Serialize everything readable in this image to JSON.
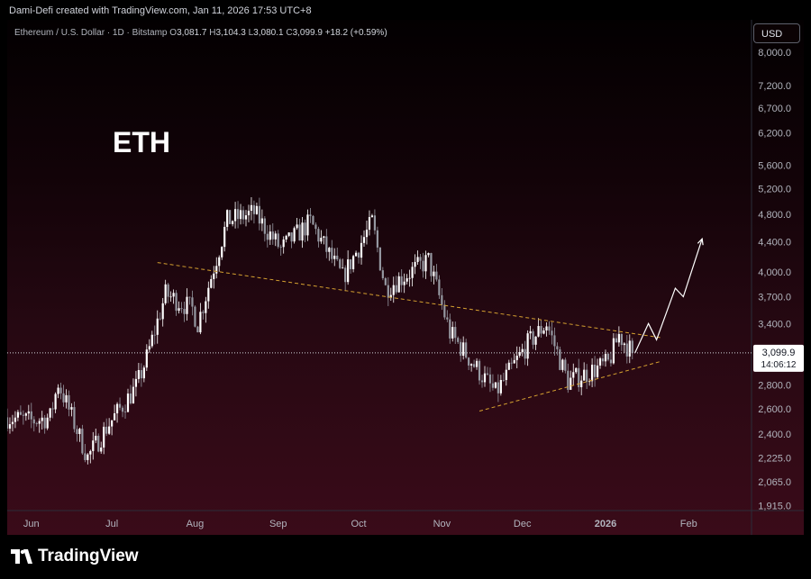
{
  "header": "Dami-Defi created with TradingView.com, Jan 11, 2026 17:53 UTC+8",
  "legend": {
    "symbol": "Ethereum / U.S. Dollar · 1D · Bitstamp",
    "o_label": "O",
    "o": "3,081.7",
    "h_label": "H",
    "h": "3,104.3",
    "l_label": "L",
    "l": "3,080.1",
    "c_label": "C",
    "c": "3,099.9",
    "change": "+18.2 (+0.59%)"
  },
  "currency_button": "USD",
  "watermark_text": "ETH",
  "price_tag": {
    "price": "3,099.9",
    "countdown": "14:06:12"
  },
  "footer_logo": "TradingView",
  "colors": {
    "up": "#ffffff",
    "down": "#9598a1",
    "trendline": "#d4a030",
    "projection": "#ffffff"
  },
  "chart_data": {
    "type": "candlestick",
    "title": "Ethereum / U.S. Dollar · 1D · Bitstamp",
    "y_scale": "log",
    "ylim": [
      1800,
      8500
    ],
    "y_ticks": [
      1915,
      2065,
      2225,
      2400,
      2600,
      2800,
      3100,
      3400,
      3700,
      4000,
      4400,
      4800,
      5200,
      5600,
      6200,
      6700,
      7200,
      8000
    ],
    "y_tick_labels": [
      "1,915.0",
      "2,065.0",
      "2,225.0",
      "2,400.0",
      "2,600.0",
      "2,800.0",
      "3,099.9",
      "3,400.0",
      "3,700.0",
      "4,000.0",
      "4,400.0",
      "4,800.0",
      "5,200.0",
      "5,600.0",
      "6,200.0",
      "6,700.0",
      "7,200.0",
      "8,000.0"
    ],
    "x_range": [
      "2025-05-23",
      "2026-02-14"
    ],
    "x_ticks": [
      {
        "date": "2025-06-01",
        "label": "Jun"
      },
      {
        "date": "2025-07-01",
        "label": "Jul"
      },
      {
        "date": "2025-08-01",
        "label": "Aug"
      },
      {
        "date": "2025-09-01",
        "label": "Sep"
      },
      {
        "date": "2025-10-01",
        "label": "Oct"
      },
      {
        "date": "2025-11-01",
        "label": "Nov"
      },
      {
        "date": "2025-12-01",
        "label": "Dec"
      },
      {
        "date": "2026-01-01",
        "label": "2026"
      },
      {
        "date": "2026-02-01",
        "label": "Feb"
      }
    ],
    "last_price": 3099.9,
    "closes": [
      {
        "date": "2025-05-23",
        "close": 2530
      },
      {
        "date": "2025-06-01",
        "close": 2500
      },
      {
        "date": "2025-06-08",
        "close": 2530
      },
      {
        "date": "2025-06-11",
        "close": 2820
      },
      {
        "date": "2025-06-22",
        "close": 2230
      },
      {
        "date": "2025-06-30",
        "close": 2480
      },
      {
        "date": "2025-07-10",
        "close": 2780
      },
      {
        "date": "2025-07-14",
        "close": 3050
      },
      {
        "date": "2025-07-21",
        "close": 3730
      },
      {
        "date": "2025-07-31",
        "close": 3560
      },
      {
        "date": "2025-08-02",
        "close": 3400
      },
      {
        "date": "2025-08-13",
        "close": 4700
      },
      {
        "date": "2025-08-23",
        "close": 4820
      },
      {
        "date": "2025-09-02",
        "close": 4300
      },
      {
        "date": "2025-09-13",
        "close": 4680
      },
      {
        "date": "2025-09-25",
        "close": 3930
      },
      {
        "date": "2025-10-06",
        "close": 4680
      },
      {
        "date": "2025-10-11",
        "close": 3800
      },
      {
        "date": "2025-10-27",
        "close": 4150
      },
      {
        "date": "2025-11-04",
        "close": 3300
      },
      {
        "date": "2025-11-21",
        "close": 2730
      },
      {
        "date": "2025-12-03",
        "close": 3190
      },
      {
        "date": "2025-12-10",
        "close": 3400
      },
      {
        "date": "2025-12-18",
        "close": 2830
      },
      {
        "date": "2026-01-02",
        "close": 3000
      },
      {
        "date": "2026-01-06",
        "close": 3280
      },
      {
        "date": "2026-01-11",
        "close": 3099.9
      }
    ],
    "trendlines": [
      {
        "style": "dashed",
        "points": [
          {
            "date": "2025-07-18",
            "price": 4120
          },
          {
            "date": "2026-01-22",
            "price": 3250
          }
        ]
      },
      {
        "style": "dashed",
        "points": [
          {
            "date": "2025-11-15",
            "price": 2580
          },
          {
            "date": "2026-01-22",
            "price": 3020
          }
        ]
      }
    ],
    "projection": [
      {
        "date": "2026-01-12",
        "price": 3100
      },
      {
        "date": "2026-01-17",
        "price": 3400
      },
      {
        "date": "2026-01-20",
        "price": 3230
      },
      {
        "date": "2026-01-27",
        "price": 3800
      },
      {
        "date": "2026-01-30",
        "price": 3700
      },
      {
        "date": "2026-02-06",
        "price": 4440
      }
    ],
    "grid": false
  }
}
